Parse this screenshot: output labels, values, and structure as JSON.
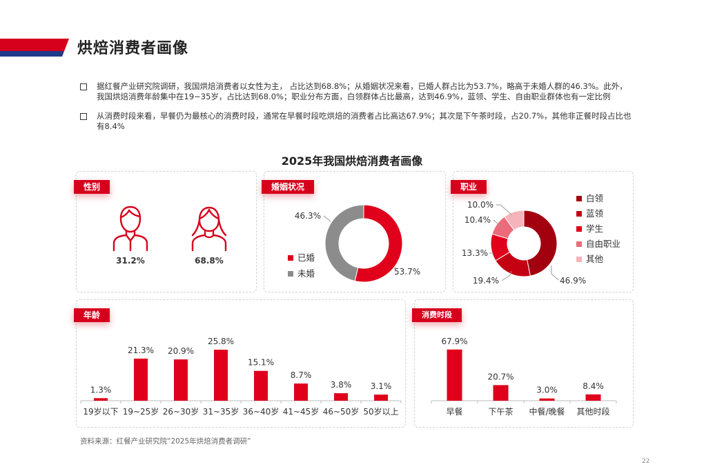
{
  "page": {
    "title": "烘焙消费者画像",
    "bullets": [
      "据红餐产业研究院调研，我国烘焙消费者以女性为主， 占比达到68.8%；从婚姻状况来看，已婚人群占比为53.7%，略高于未婚人群的46.3%。此外，我国烘焙消费年龄集中在19~35岁，占比达到68.0%；职业分布方面，白领群体占比最高，达到46.9%，蓝领、学生、自由职业群体也有一定比例",
      "从消费时段来看，早餐仍为最核心的消费时段，通常在早餐时段吃烘焙的消费者占比高达67.9%；其次是下午茶时段，占20.7%，其他非正餐时段占比也有8.4%"
    ],
    "figure_title": "2025年我国烘焙消费者画像",
    "source": "资料来源：红餐产业研究院“2025年烘焙消费者调研”",
    "page_number": "22",
    "colors": {
      "accent": "#d6001c",
      "grey": "#8c8c8c"
    }
  },
  "chart_data": [
    {
      "type": "pictogram",
      "tag": "性别",
      "categories": [
        "男",
        "女"
      ],
      "icons": [
        "male-icon",
        "female-icon"
      ],
      "values": [
        31.2,
        68.8
      ],
      "labels": [
        "31.2%",
        "68.8%"
      ]
    },
    {
      "type": "pie",
      "tag": "婚姻状况",
      "categories": [
        "已婚",
        "未婚"
      ],
      "values": [
        53.7,
        46.3
      ],
      "labels": [
        "53.7%",
        "46.3%"
      ],
      "colors": [
        "#e0001b",
        "#8c8c8c"
      ],
      "donut": true,
      "legend": "left"
    },
    {
      "type": "pie",
      "tag": "职业",
      "categories": [
        "白领",
        "蓝领",
        "学生",
        "自由职业",
        "其他"
      ],
      "values": [
        46.9,
        19.4,
        13.3,
        10.4,
        10.0
      ],
      "labels": [
        "46.9%",
        "19.4%",
        "13.3%",
        "10.4%",
        "10.0%"
      ],
      "colors": [
        "#a3000f",
        "#c40013",
        "#e0001b",
        "#ec6b7a",
        "#f5b3ba"
      ],
      "donut": true,
      "legend": "right"
    },
    {
      "type": "bar",
      "tag": "年龄",
      "categories": [
        "19岁以下",
        "19~25岁",
        "26~30岁",
        "31~35岁",
        "36~40岁",
        "41~45岁",
        "46~50岁",
        "50岁以上"
      ],
      "values": [
        1.3,
        21.3,
        20.9,
        25.8,
        15.1,
        8.7,
        3.8,
        3.1
      ],
      "labels": [
        "1.3%",
        "21.3%",
        "20.9%",
        "25.8%",
        "15.1%",
        "8.7%",
        "3.8%",
        "3.1%"
      ],
      "color": "#e0001b",
      "ylim": [
        0,
        30
      ]
    },
    {
      "type": "bar",
      "tag": "消费时段",
      "categories": [
        "早餐",
        "下午茶",
        "中餐/晚餐",
        "其他时段"
      ],
      "values": [
        67.9,
        20.7,
        3.0,
        8.4
      ],
      "labels": [
        "67.9%",
        "20.7%",
        "3.0%",
        "8.4%"
      ],
      "color": "#e0001b",
      "ylim": [
        0,
        75
      ]
    }
  ]
}
